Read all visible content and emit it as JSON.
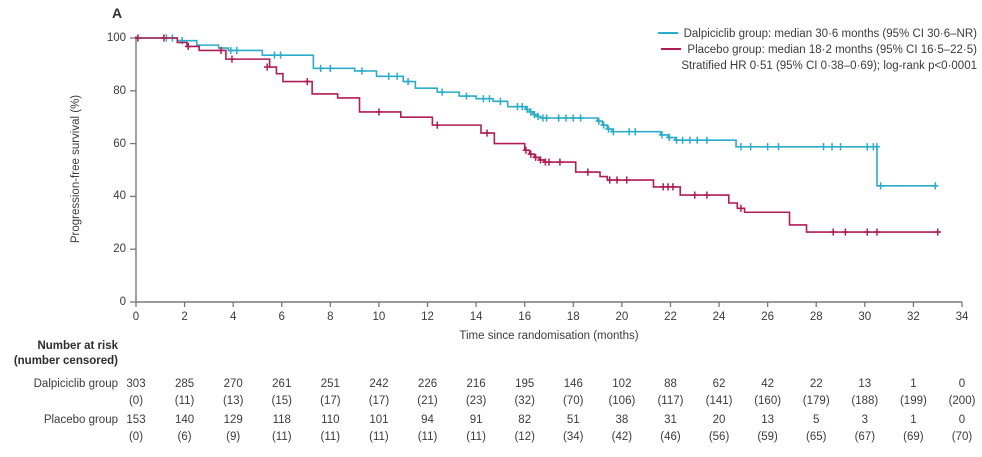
{
  "panel_label": "A",
  "colors": {
    "dalpiciclib": "#2bacc8",
    "placebo": "#b01c57",
    "axis": "#77787b",
    "text": "#3b3b3d"
  },
  "chart_data": {
    "type": "line",
    "subtype": "kaplan-meier-step-curves",
    "title": "",
    "xlabel": "Time since randomisation (months)",
    "ylabel": "Progression-free survival (%)",
    "xlim": [
      0,
      34
    ],
    "ylim": [
      0,
      100
    ],
    "xticks": [
      0,
      2,
      4,
      6,
      8,
      10,
      12,
      14,
      16,
      18,
      20,
      22,
      24,
      26,
      28,
      30,
      32,
      34
    ],
    "yticks": [
      0,
      20,
      40,
      60,
      80,
      100
    ],
    "grid": false,
    "legend_position": "top-right",
    "legend": {
      "entries": [
        {
          "label": "Dalpiciclib group: median 30·6 months (95% CI 30·6–NR)",
          "color_key": "dalpiciclib"
        },
        {
          "label": "Placebo group: median 18·2 months (95% CI 16·5–22·5)",
          "color_key": "placebo"
        }
      ],
      "note": "Stratified HR 0·51 (95% CI 0·38–0·69); log-rank p<0·0001"
    },
    "series": [
      {
        "name": "Dalpiciclib group",
        "color_key": "dalpiciclib",
        "median_months": "30·6",
        "ci": "30·6–NR",
        "step_points": [
          [
            0,
            100
          ],
          [
            1.7,
            99.0
          ],
          [
            2.5,
            97.3
          ],
          [
            3.4,
            96.2
          ],
          [
            3.8,
            95.3
          ],
          [
            5.2,
            93.5
          ],
          [
            7.3,
            88.5
          ],
          [
            9.0,
            87.5
          ],
          [
            9.9,
            85.5
          ],
          [
            11.0,
            83.5
          ],
          [
            11.5,
            81.0
          ],
          [
            12.4,
            79.5
          ],
          [
            13.3,
            78.0
          ],
          [
            14.0,
            77.0
          ],
          [
            14.7,
            76.0
          ],
          [
            15.3,
            74.0
          ],
          [
            16.05,
            73.0
          ],
          [
            16.2,
            72.0
          ],
          [
            16.35,
            71.0
          ],
          [
            16.5,
            70.3
          ],
          [
            16.65,
            69.7
          ],
          [
            19.0,
            68.5
          ],
          [
            19.2,
            67.0
          ],
          [
            19.4,
            65.5
          ],
          [
            19.6,
            64.5
          ],
          [
            21.6,
            63.3
          ],
          [
            21.9,
            62.3
          ],
          [
            22.2,
            61.3
          ],
          [
            24.7,
            58.8
          ],
          [
            30.5,
            44.0
          ]
        ],
        "end_month": 33.0,
        "censor_marks": [
          [
            1.25,
            100
          ],
          [
            1.5,
            100
          ],
          [
            1.9,
            99.0
          ],
          [
            3.9,
            95.3
          ],
          [
            4.15,
            95.3
          ],
          [
            5.7,
            93.5
          ],
          [
            5.95,
            93.5
          ],
          [
            7.6,
            88.5
          ],
          [
            8.0,
            88.5
          ],
          [
            9.3,
            87.5
          ],
          [
            10.4,
            85.5
          ],
          [
            10.75,
            85.5
          ],
          [
            11.2,
            83.5
          ],
          [
            12.6,
            79.5
          ],
          [
            13.6,
            78.0
          ],
          [
            14.3,
            77.0
          ],
          [
            14.55,
            77.0
          ],
          [
            15.0,
            76.0
          ],
          [
            15.7,
            74.0
          ],
          [
            15.9,
            74.0
          ],
          [
            16.1,
            73.0
          ],
          [
            16.25,
            72.0
          ],
          [
            16.4,
            71.0
          ],
          [
            16.55,
            70.3
          ],
          [
            16.75,
            69.7
          ],
          [
            16.9,
            69.7
          ],
          [
            17.4,
            69.7
          ],
          [
            17.7,
            69.7
          ],
          [
            18.0,
            69.7
          ],
          [
            18.3,
            69.7
          ],
          [
            19.05,
            68.5
          ],
          [
            19.25,
            67.0
          ],
          [
            19.45,
            65.5
          ],
          [
            19.65,
            64.5
          ],
          [
            20.3,
            64.5
          ],
          [
            20.55,
            64.5
          ],
          [
            21.65,
            63.3
          ],
          [
            21.95,
            62.3
          ],
          [
            22.25,
            61.3
          ],
          [
            22.5,
            61.3
          ],
          [
            22.8,
            61.3
          ],
          [
            23.1,
            61.3
          ],
          [
            23.5,
            61.3
          ],
          [
            24.9,
            58.8
          ],
          [
            25.3,
            58.8
          ],
          [
            26.0,
            58.8
          ],
          [
            26.45,
            58.8
          ],
          [
            28.3,
            58.8
          ],
          [
            28.65,
            58.8
          ],
          [
            29.0,
            58.8
          ],
          [
            30.1,
            58.8
          ],
          [
            30.35,
            58.8
          ],
          [
            30.5,
            58.8
          ],
          [
            30.65,
            44.0
          ],
          [
            32.9,
            44.0
          ]
        ]
      },
      {
        "name": "Placebo group",
        "color_key": "placebo",
        "median_months": "18·2",
        "ci": "16·5–22·5",
        "step_points": [
          [
            0,
            100
          ],
          [
            1.7,
            98.3
          ],
          [
            2.1,
            96.8
          ],
          [
            2.6,
            95.3
          ],
          [
            3.7,
            92.0
          ],
          [
            5.5,
            89.0
          ],
          [
            5.78,
            86.5
          ],
          [
            6.05,
            83.5
          ],
          [
            7.25,
            78.8
          ],
          [
            8.3,
            77.3
          ],
          [
            9.2,
            72.0
          ],
          [
            10.9,
            70.0
          ],
          [
            12.2,
            67.0
          ],
          [
            14.2,
            64.0
          ],
          [
            14.75,
            60.0
          ],
          [
            16.0,
            57.5
          ],
          [
            16.2,
            56.0
          ],
          [
            16.4,
            54.8
          ],
          [
            16.6,
            53.8
          ],
          [
            16.8,
            53.0
          ],
          [
            18.1,
            49.2
          ],
          [
            19.1,
            47.5
          ],
          [
            19.4,
            46.2
          ],
          [
            21.3,
            43.6
          ],
          [
            22.4,
            40.5
          ],
          [
            24.4,
            37.5
          ],
          [
            24.75,
            35.5
          ],
          [
            25.05,
            34.0
          ],
          [
            26.9,
            29.2
          ],
          [
            27.6,
            26.5
          ]
        ],
        "end_month": 33.1,
        "censor_marks": [
          [
            0.08,
            100
          ],
          [
            1.15,
            100
          ],
          [
            2.15,
            96.8
          ],
          [
            3.5,
            95.3
          ],
          [
            3.95,
            92.0
          ],
          [
            5.4,
            89.0
          ],
          [
            7.05,
            83.5
          ],
          [
            10.0,
            72.0
          ],
          [
            12.4,
            67.0
          ],
          [
            14.45,
            64.0
          ],
          [
            16.05,
            57.5
          ],
          [
            16.25,
            56.0
          ],
          [
            16.45,
            54.8
          ],
          [
            16.65,
            53.8
          ],
          [
            16.85,
            53.0
          ],
          [
            17.0,
            53.0
          ],
          [
            17.45,
            53.0
          ],
          [
            18.6,
            49.2
          ],
          [
            19.5,
            46.2
          ],
          [
            19.8,
            46.2
          ],
          [
            20.2,
            46.2
          ],
          [
            21.7,
            43.6
          ],
          [
            21.9,
            43.6
          ],
          [
            22.1,
            43.6
          ],
          [
            23.0,
            40.5
          ],
          [
            23.5,
            40.5
          ],
          [
            24.9,
            35.5
          ],
          [
            28.7,
            26.5
          ],
          [
            29.2,
            26.5
          ],
          [
            30.1,
            26.5
          ],
          [
            30.5,
            26.5
          ],
          [
            33.0,
            26.5
          ]
        ]
      }
    ],
    "stats_note": "Stratified HR 0·51 (95% CI 0·38–0·69); log-rank p<0·0001"
  },
  "risk_table": {
    "title_line1": "Number at risk",
    "title_line2": "(number censored)",
    "time_points": [
      0,
      2,
      4,
      6,
      8,
      10,
      12,
      14,
      16,
      18,
      20,
      22,
      24,
      26,
      28,
      30,
      32,
      34
    ],
    "rows": [
      {
        "label": "Dalpiciclib group",
        "at_risk": [
          "303",
          "285",
          "270",
          "261",
          "251",
          "242",
          "226",
          "216",
          "195",
          "146",
          "102",
          "88",
          "62",
          "42",
          "22",
          "13",
          "1",
          "0"
        ],
        "censored": [
          "(0)",
          "(11)",
          "(13)",
          "(15)",
          "(17)",
          "(17)",
          "(21)",
          "(23)",
          "(32)",
          "(70)",
          "(106)",
          "(117)",
          "(141)",
          "(160)",
          "(179)",
          "(188)",
          "(199)",
          "(200)"
        ]
      },
      {
        "label": "Placebo group",
        "at_risk": [
          "153",
          "140",
          "129",
          "118",
          "110",
          "101",
          "94",
          "91",
          "82",
          "51",
          "38",
          "31",
          "20",
          "13",
          "5",
          "3",
          "1",
          "0"
        ],
        "censored": [
          "(0)",
          "(6)",
          "(9)",
          "(11)",
          "(11)",
          "(11)",
          "(11)",
          "(11)",
          "(12)",
          "(34)",
          "(42)",
          "(46)",
          "(56)",
          "(59)",
          "(65)",
          "(67)",
          "(69)",
          "(70)"
        ]
      }
    ]
  }
}
